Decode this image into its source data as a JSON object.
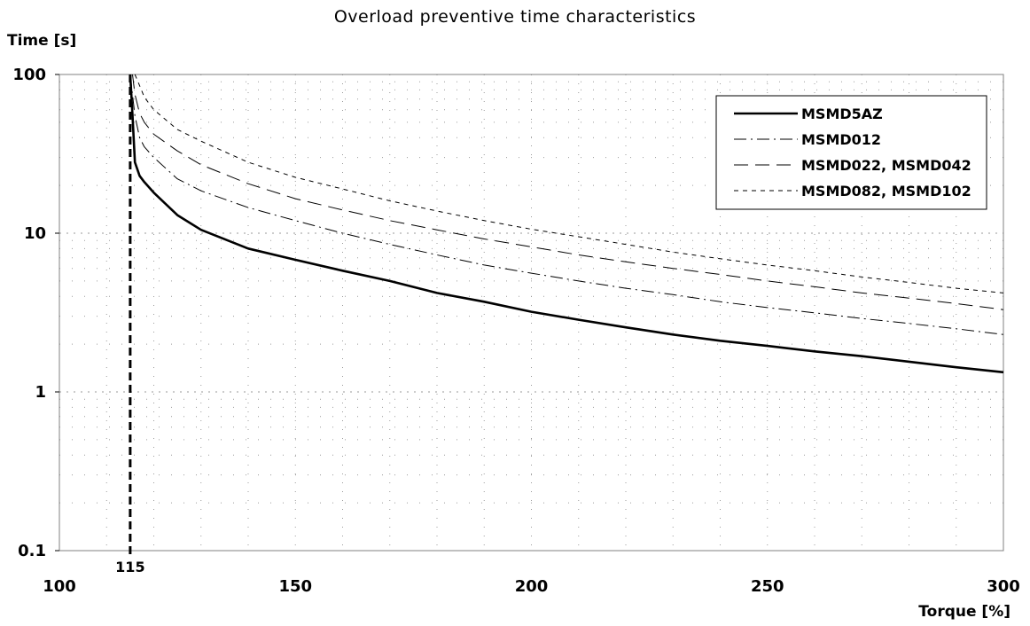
{
  "chart_data": {
    "type": "line",
    "title": "Overload preventive time characteristics",
    "xlabel": "Torque [%]",
    "ylabel": "Time [s]",
    "y_scale": "log",
    "xlim": [
      100,
      300
    ],
    "ylim": [
      0.1,
      100
    ],
    "x_ticks": [
      "100",
      "150",
      "200",
      "250",
      "300"
    ],
    "x_extra_tick": "115",
    "y_ticks": [
      "0.1",
      "1",
      "10",
      "100"
    ],
    "grid": true,
    "legend_position": "top-right",
    "marker_line": {
      "x": 115,
      "style": "dashed"
    },
    "series": [
      {
        "name": "MSMD5AZ",
        "style": "solid-thick",
        "color": "#000000",
        "points": [
          [
            115,
            100
          ],
          [
            115.5,
            55
          ],
          [
            116,
            28
          ],
          [
            117,
            23
          ],
          [
            118,
            21
          ],
          [
            120,
            18
          ],
          [
            125,
            13
          ],
          [
            130,
            10.5
          ],
          [
            140,
            8
          ],
          [
            150,
            6.8
          ],
          [
            160,
            5.8
          ],
          [
            170,
            5
          ],
          [
            180,
            4.2
          ],
          [
            190,
            3.7
          ],
          [
            200,
            3.2
          ],
          [
            210,
            2.85
          ],
          [
            220,
            2.55
          ],
          [
            230,
            2.3
          ],
          [
            240,
            2.1
          ],
          [
            250,
            1.95
          ],
          [
            260,
            1.8
          ],
          [
            270,
            1.68
          ],
          [
            280,
            1.55
          ],
          [
            290,
            1.43
          ],
          [
            300,
            1.33
          ]
        ]
      },
      {
        "name": "MSMD012",
        "style": "dash-dot",
        "color": "#000000",
        "points": [
          [
            115,
            100
          ],
          [
            116,
            55
          ],
          [
            117,
            40
          ],
          [
            118,
            35
          ],
          [
            120,
            30
          ],
          [
            125,
            22
          ],
          [
            130,
            18.5
          ],
          [
            140,
            14.5
          ],
          [
            150,
            12
          ],
          [
            160,
            10
          ],
          [
            170,
            8.5
          ],
          [
            180,
            7.3
          ],
          [
            190,
            6.3
          ],
          [
            200,
            5.6
          ],
          [
            210,
            5
          ],
          [
            220,
            4.5
          ],
          [
            230,
            4.1
          ],
          [
            240,
            3.7
          ],
          [
            250,
            3.4
          ],
          [
            260,
            3.15
          ],
          [
            270,
            2.9
          ],
          [
            280,
            2.7
          ],
          [
            290,
            2.5
          ],
          [
            300,
            2.3
          ]
        ]
      },
      {
        "name": "MSMD022, MSMD042",
        "style": "long-dash",
        "color": "#000000",
        "points": [
          [
            115.5,
            100
          ],
          [
            116,
            75
          ],
          [
            117,
            57
          ],
          [
            118,
            50
          ],
          [
            120,
            42
          ],
          [
            125,
            33
          ],
          [
            130,
            27
          ],
          [
            140,
            20.5
          ],
          [
            150,
            16.5
          ],
          [
            160,
            14
          ],
          [
            170,
            12
          ],
          [
            180,
            10.5
          ],
          [
            190,
            9.2
          ],
          [
            200,
            8.2
          ],
          [
            210,
            7.3
          ],
          [
            220,
            6.6
          ],
          [
            230,
            6
          ],
          [
            240,
            5.5
          ],
          [
            250,
            5
          ],
          [
            260,
            4.6
          ],
          [
            270,
            4.2
          ],
          [
            280,
            3.9
          ],
          [
            290,
            3.6
          ],
          [
            300,
            3.3
          ]
        ]
      },
      {
        "name": "MSMD082, MSMD102",
        "style": "short-dash",
        "color": "#000000",
        "points": [
          [
            116,
            100
          ],
          [
            117,
            85
          ],
          [
            118,
            72
          ],
          [
            120,
            60
          ],
          [
            125,
            45
          ],
          [
            130,
            38
          ],
          [
            140,
            28
          ],
          [
            150,
            22.5
          ],
          [
            160,
            19
          ],
          [
            170,
            16
          ],
          [
            180,
            13.8
          ],
          [
            190,
            12
          ],
          [
            200,
            10.6
          ],
          [
            210,
            9.5
          ],
          [
            220,
            8.5
          ],
          [
            230,
            7.6
          ],
          [
            240,
            6.9
          ],
          [
            250,
            6.3
          ],
          [
            260,
            5.8
          ],
          [
            270,
            5.3
          ],
          [
            280,
            4.9
          ],
          [
            290,
            4.5
          ],
          [
            300,
            4.2
          ]
        ]
      }
    ]
  }
}
